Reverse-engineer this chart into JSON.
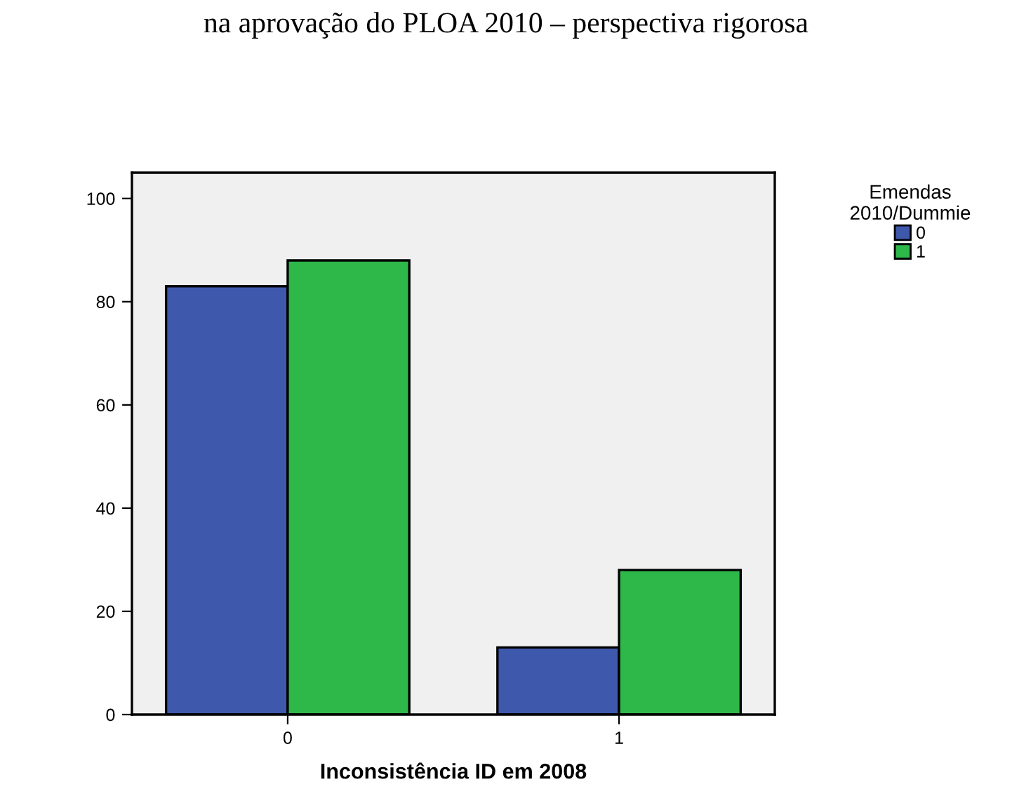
{
  "chart_data": {
    "type": "bar",
    "title": "na aprovação do PLOA 2010 – perspectiva rigorosa",
    "xlabel": "Inconsistência ID em 2008",
    "legend_title": "Emendas\n2010/Dummie",
    "categories": [
      "0",
      "1"
    ],
    "series": [
      {
        "name": "0",
        "color": "#3e58ac",
        "values": [
          83,
          13
        ]
      },
      {
        "name": "1",
        "color": "#2fb84a",
        "values": [
          88,
          28
        ]
      }
    ],
    "ylim": [
      0,
      105
    ],
    "yticks": [
      0,
      20,
      40,
      60,
      80,
      100
    ],
    "grid": false,
    "legend": "top right"
  }
}
